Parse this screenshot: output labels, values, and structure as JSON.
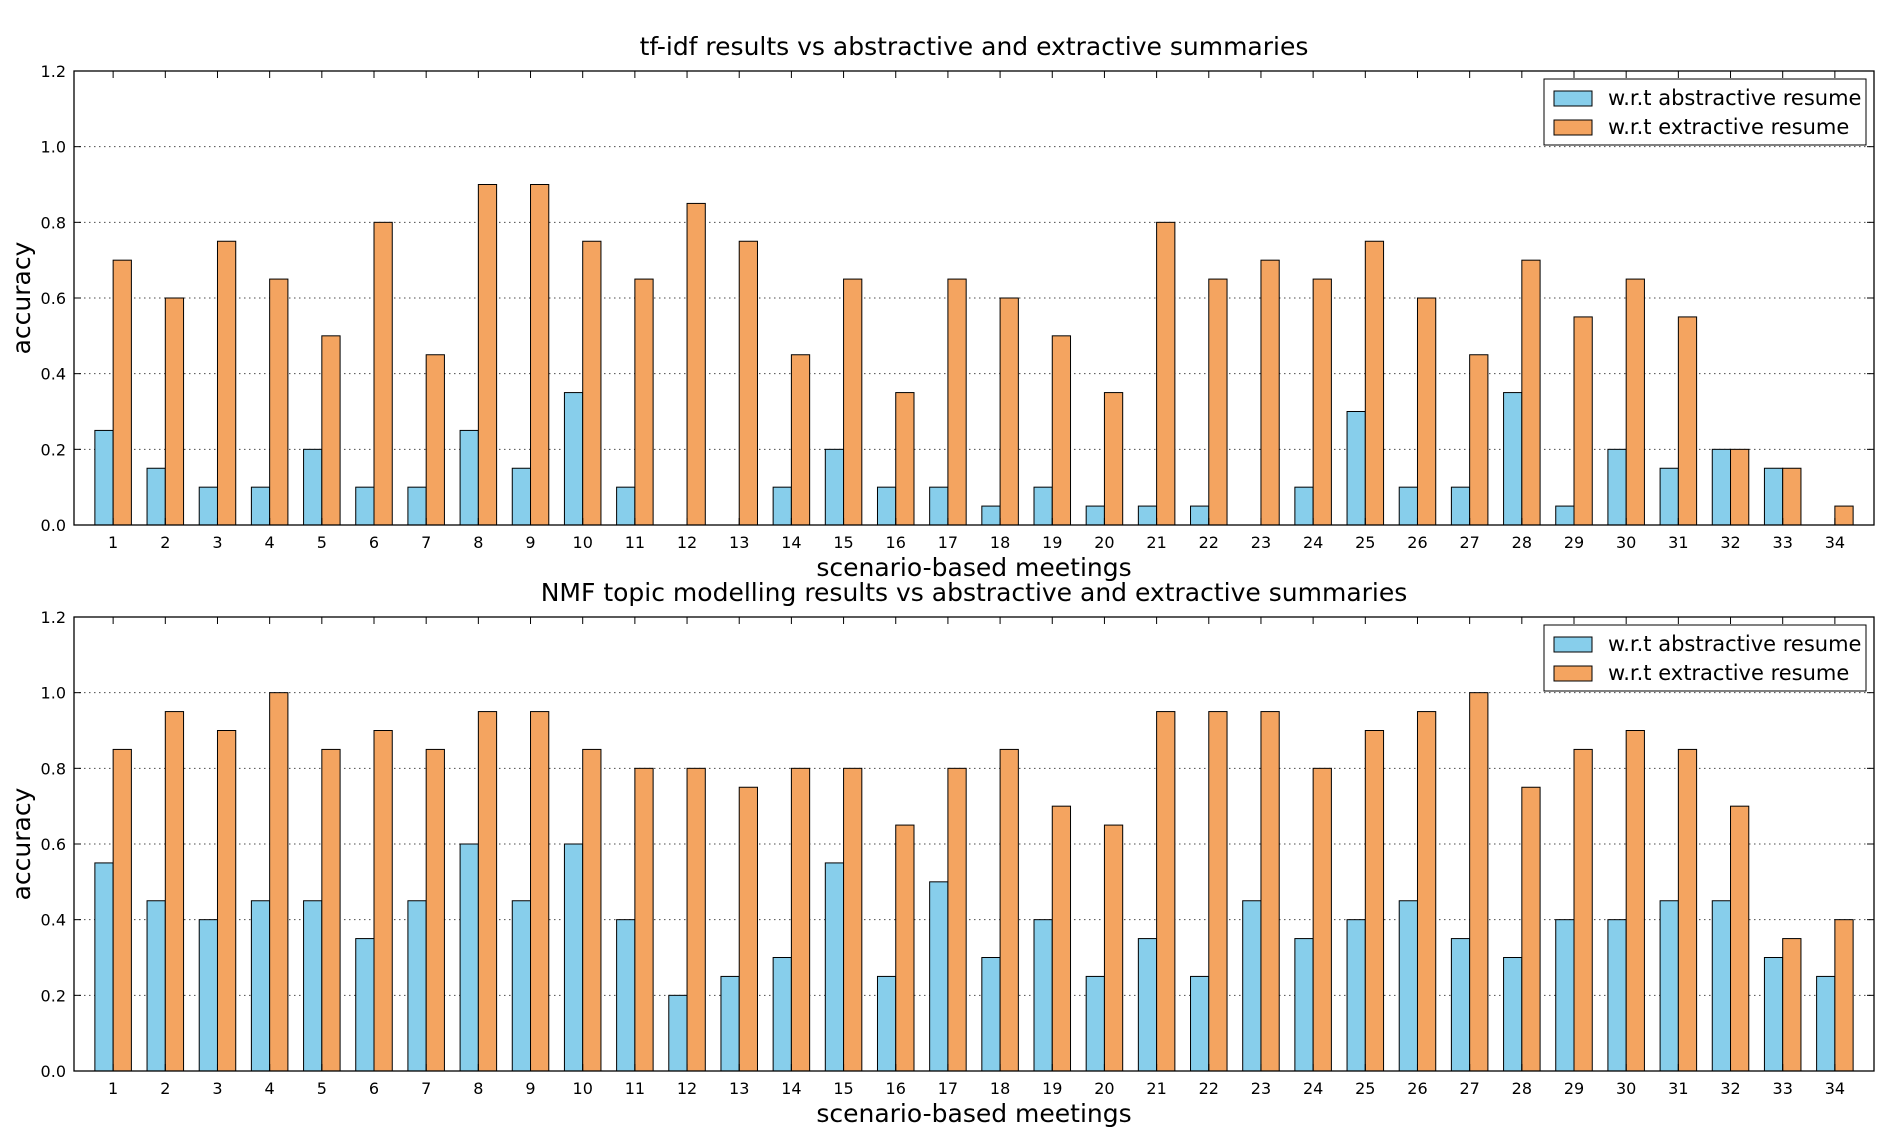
{
  "chart_data": [
    {
      "type": "bar",
      "title": "tf-idf results vs abstractive and extractive summaries",
      "xlabel": "scenario-based meetings",
      "ylabel": "accuracy",
      "ylim": [
        0,
        1.2
      ],
      "yticks": [
        "0.0",
        "0.2",
        "0.4",
        "0.6",
        "0.8",
        "1.0",
        "1.2"
      ],
      "grid": "horizontal dotted",
      "legend_position": "top-right",
      "categories": [
        "1",
        "2",
        "3",
        "4",
        "5",
        "6",
        "7",
        "8",
        "9",
        "10",
        "11",
        "12",
        "13",
        "14",
        "15",
        "16",
        "17",
        "18",
        "19",
        "20",
        "21",
        "22",
        "23",
        "24",
        "25",
        "26",
        "27",
        "28",
        "29",
        "30",
        "31",
        "32",
        "33",
        "34"
      ],
      "series": [
        {
          "name": "w.r.t abstractive resume",
          "color": "#87ceeb",
          "values": [
            0.25,
            0.15,
            0.1,
            0.1,
            0.2,
            0.1,
            0.1,
            0.25,
            0.15,
            0.35,
            0.1,
            0.0,
            0.0,
            0.1,
            0.2,
            0.1,
            0.1,
            0.05,
            0.1,
            0.05,
            0.05,
            0.05,
            0.0,
            0.1,
            0.3,
            0.1,
            0.1,
            0.35,
            0.05,
            0.2,
            0.15,
            0.2,
            0.15,
            0.0
          ]
        },
        {
          "name": "w.r.t extractive resume",
          "color": "#f4a460",
          "values": [
            0.7,
            0.6,
            0.75,
            0.65,
            0.5,
            0.8,
            0.45,
            0.9,
            0.9,
            0.75,
            0.65,
            0.85,
            0.75,
            0.45,
            0.65,
            0.35,
            0.65,
            0.6,
            0.5,
            0.35,
            0.8,
            0.65,
            0.7,
            0.65,
            0.75,
            0.6,
            0.45,
            0.7,
            0.55,
            0.65,
            0.55,
            0.2,
            0.15,
            0.05
          ]
        }
      ]
    },
    {
      "type": "bar",
      "title": "NMF topic modelling results vs abstractive and extractive summaries",
      "xlabel": "scenario-based meetings",
      "ylabel": "accuracy",
      "ylim": [
        0,
        1.2
      ],
      "yticks": [
        "0.0",
        "0.2",
        "0.4",
        "0.6",
        "0.8",
        "1.0",
        "1.2"
      ],
      "grid": "horizontal dotted",
      "legend_position": "top-right",
      "categories": [
        "1",
        "2",
        "3",
        "4",
        "5",
        "6",
        "7",
        "8",
        "9",
        "10",
        "11",
        "12",
        "13",
        "14",
        "15",
        "16",
        "17",
        "18",
        "19",
        "20",
        "21",
        "22",
        "23",
        "24",
        "25",
        "26",
        "27",
        "28",
        "29",
        "30",
        "31",
        "32",
        "33",
        "34"
      ],
      "series": [
        {
          "name": "w.r.t abstractive resume",
          "color": "#87ceeb",
          "values": [
            0.55,
            0.45,
            0.4,
            0.45,
            0.45,
            0.35,
            0.45,
            0.6,
            0.45,
            0.6,
            0.4,
            0.2,
            0.25,
            0.3,
            0.55,
            0.25,
            0.5,
            0.3,
            0.4,
            0.25,
            0.35,
            0.25,
            0.45,
            0.35,
            0.4,
            0.45,
            0.35,
            0.3,
            0.4,
            0.4,
            0.45,
            0.45,
            0.3,
            0.25
          ]
        },
        {
          "name": "w.r.t extractive resume",
          "color": "#f4a460",
          "values": [
            0.85,
            0.95,
            0.9,
            1.0,
            0.85,
            0.9,
            0.85,
            0.95,
            0.95,
            0.85,
            0.8,
            0.8,
            0.75,
            0.8,
            0.8,
            0.65,
            0.8,
            0.85,
            0.7,
            0.65,
            0.95,
            0.95,
            0.95,
            0.8,
            0.9,
            0.95,
            1.0,
            0.75,
            0.85,
            0.9,
            0.85,
            0.7,
            0.35,
            0.4
          ]
        }
      ]
    }
  ]
}
